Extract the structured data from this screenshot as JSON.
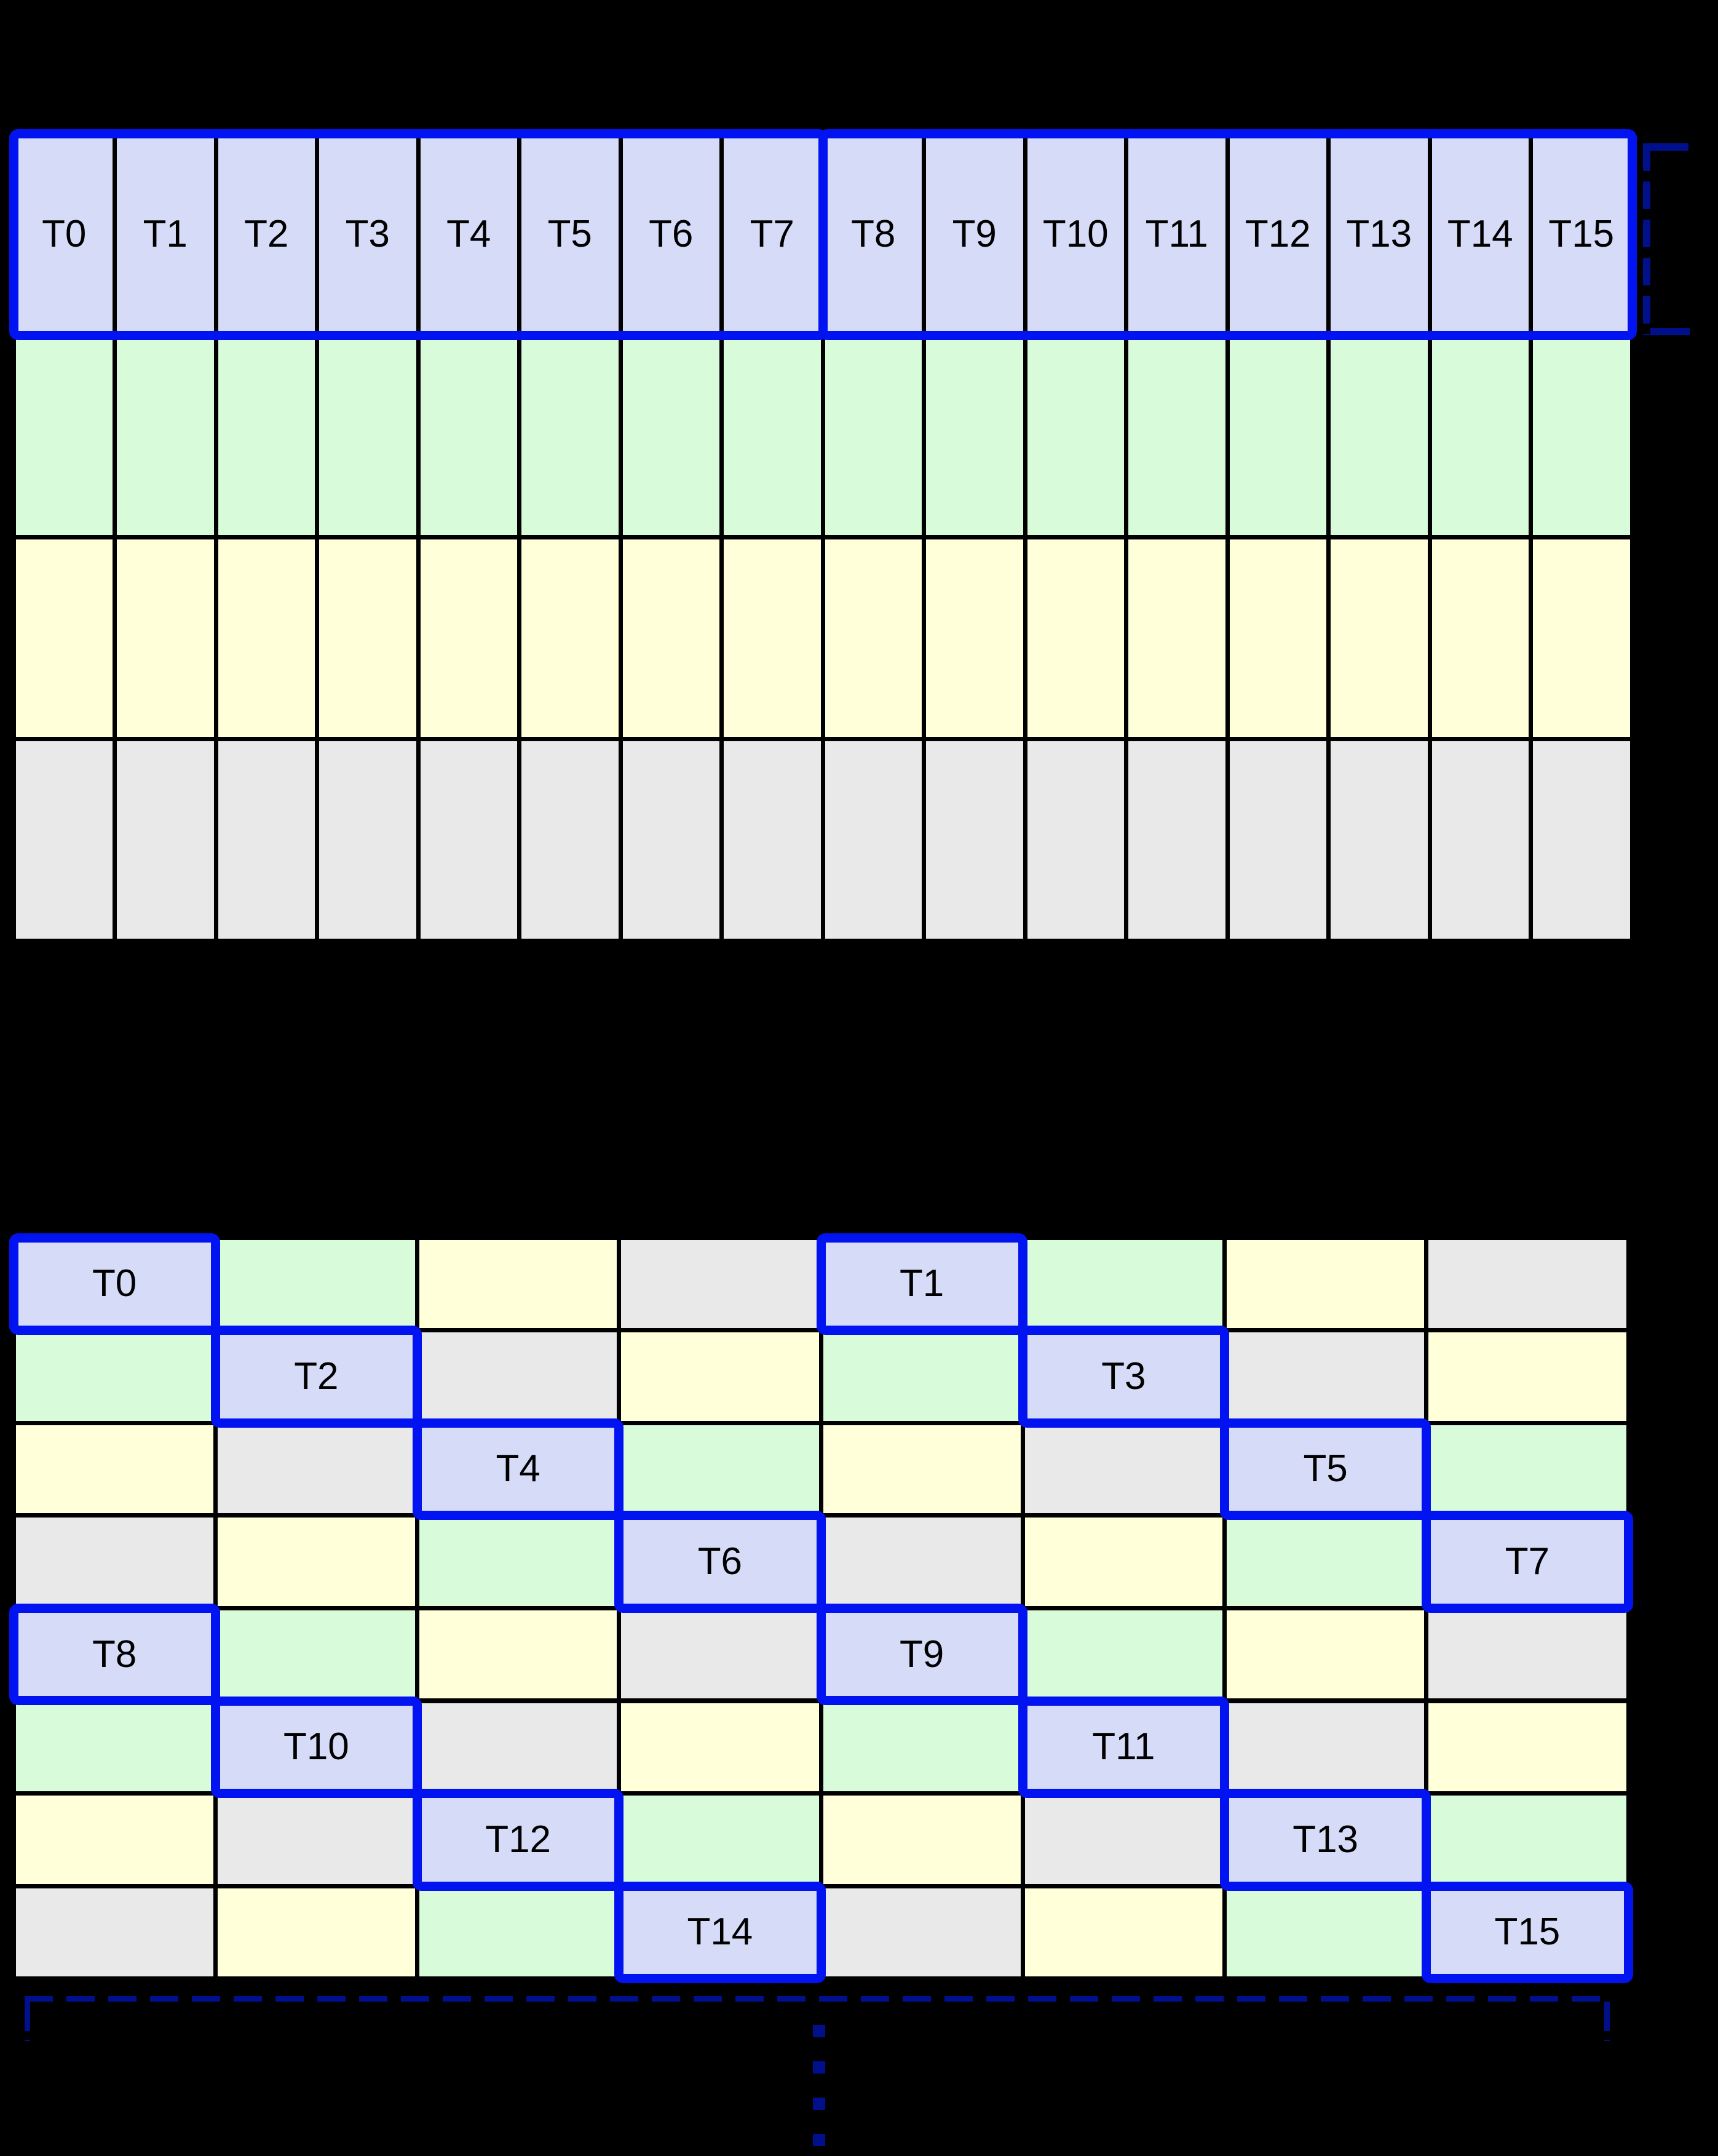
{
  "figure": {
    "description": "Shared-memory swizzling diagram: a warp of 16 threads reading a row linearly (top) and the same threads mapped diagonally across swizzled banks (bottom)",
    "background": "#000000"
  },
  "palette": {
    "thread": "#d6dcf8",
    "green": "#d8fbd9",
    "yellow": "#ffffd9",
    "gray": "#e9e9ea",
    "grid_line": "#000000",
    "highlight_blue": "#0013f0",
    "bracket_navy": "#000f8c",
    "label_color": "#000000"
  },
  "top_grid": {
    "cols": 16,
    "rows": 4,
    "row_colors": [
      "thread",
      "green",
      "yellow",
      "gray"
    ],
    "thread_labels": [
      "T0",
      "T1",
      "T2",
      "T3",
      "T4",
      "T5",
      "T6",
      "T7",
      "T8",
      "T9",
      "T10",
      "T11",
      "T12",
      "T13",
      "T14",
      "T15"
    ],
    "highlight_groups": [
      {
        "from_col": 0,
        "to_col": 7
      },
      {
        "from_col": 8,
        "to_col": 15
      }
    ]
  },
  "bottom_grid": {
    "cols": 8,
    "rows": 8,
    "color_order": [
      "thread",
      "green",
      "yellow",
      "gray"
    ],
    "pattern_rule": "color_index = (row mod 4) XOR (col mod 4)",
    "thread_cells": [
      {
        "row": 0,
        "col": 0,
        "label": "T0"
      },
      {
        "row": 0,
        "col": 4,
        "label": "T1"
      },
      {
        "row": 1,
        "col": 1,
        "label": "T2"
      },
      {
        "row": 1,
        "col": 5,
        "label": "T3"
      },
      {
        "row": 2,
        "col": 2,
        "label": "T4"
      },
      {
        "row": 2,
        "col": 6,
        "label": "T5"
      },
      {
        "row": 3,
        "col": 3,
        "label": "T6"
      },
      {
        "row": 3,
        "col": 7,
        "label": "T7"
      },
      {
        "row": 4,
        "col": 0,
        "label": "T8"
      },
      {
        "row": 4,
        "col": 4,
        "label": "T9"
      },
      {
        "row": 5,
        "col": 1,
        "label": "T10"
      },
      {
        "row": 5,
        "col": 5,
        "label": "T11"
      },
      {
        "row": 6,
        "col": 2,
        "label": "T12"
      },
      {
        "row": 6,
        "col": 6,
        "label": "T13"
      },
      {
        "row": 7,
        "col": 3,
        "label": "T14"
      },
      {
        "row": 7,
        "col": 7,
        "label": "T15"
      }
    ]
  },
  "annotations": {
    "right_bracket": "dashed navy square bracket spanning the height of the top thread row",
    "bottom_bracket": "dashed navy dimension line spanning the bottom grid width with downward end ticks",
    "continuation_dots": "vertical dotted line below the bottom grid indicating the pattern continues"
  }
}
